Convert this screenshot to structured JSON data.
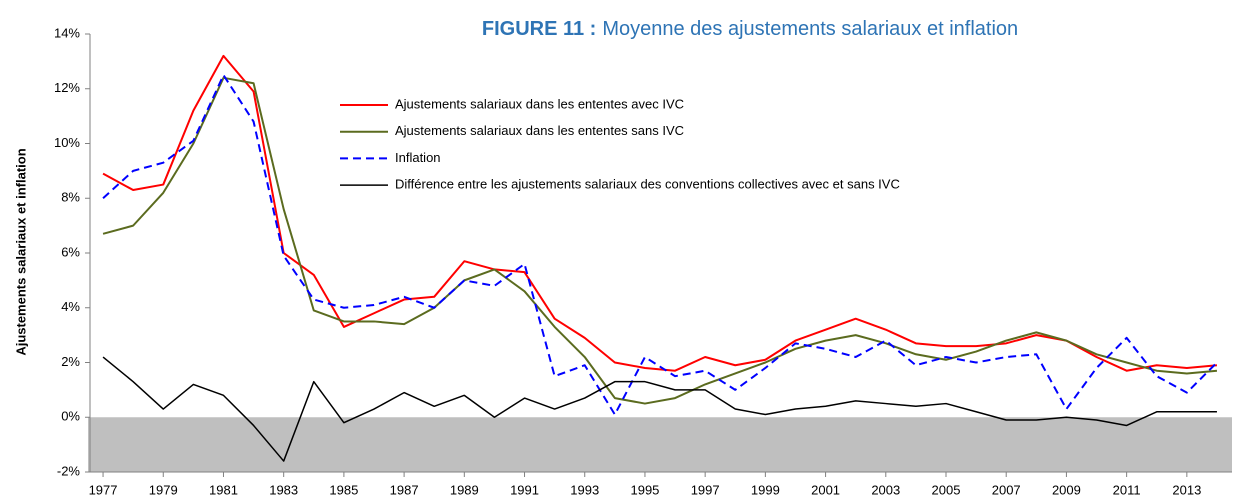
{
  "chart_data": {
    "type": "line",
    "figure_label": "FIGURE 11 :",
    "title": "Moyenne des ajustements salariaux et inflation",
    "y_label": "Ajustements salariaux et inflation",
    "x": [
      1977,
      1978,
      1979,
      1980,
      1981,
      1982,
      1983,
      1984,
      1985,
      1986,
      1987,
      1988,
      1989,
      1990,
      1991,
      1992,
      1993,
      1994,
      1995,
      1996,
      1997,
      1998,
      1999,
      2000,
      2001,
      2002,
      2003,
      2004,
      2005,
      2006,
      2007,
      2008,
      2009,
      2010,
      2011,
      2012,
      2013,
      2014
    ],
    "xlim": [
      1976.5,
      2014.5
    ],
    "xticks": [
      1977,
      1979,
      1981,
      1983,
      1985,
      1987,
      1989,
      1991,
      1993,
      1995,
      1997,
      1999,
      2001,
      2003,
      2005,
      2007,
      2009,
      2011,
      2013
    ],
    "ylim": [
      -2,
      14
    ],
    "yticks": [
      {
        "value": -2,
        "label": "-2%"
      },
      {
        "value": 0,
        "label": "0%"
      },
      {
        "value": 2,
        "label": "2%"
      },
      {
        "value": 4,
        "label": "4%"
      },
      {
        "value": 6,
        "label": "6%"
      },
      {
        "value": 8,
        "label": "8%"
      },
      {
        "value": 10,
        "label": "10%"
      },
      {
        "value": 12,
        "label": "12%"
      },
      {
        "value": 14,
        "label": "14%"
      }
    ],
    "legend": "top",
    "series": [
      {
        "name": "Ajustements salariaux dans les ententes avec IVC",
        "color": "#ff0000",
        "style": "solid",
        "values": [
          8.9,
          8.3,
          8.5,
          11.2,
          13.2,
          11.9,
          6.0,
          5.2,
          3.3,
          3.8,
          4.3,
          4.4,
          5.7,
          5.4,
          5.3,
          3.6,
          2.9,
          2.0,
          1.8,
          1.7,
          2.2,
          1.9,
          2.1,
          2.8,
          3.2,
          3.6,
          3.2,
          2.7,
          2.6,
          2.6,
          2.7,
          3.0,
          2.8,
          2.2,
          1.7,
          1.9,
          1.8,
          1.9
        ]
      },
      {
        "name": "Ajustements salariaux dans les ententes sans IVC",
        "color": "#5b6b1f",
        "style": "solid",
        "values": [
          6.7,
          7.0,
          8.2,
          10.0,
          12.4,
          12.2,
          7.6,
          3.9,
          3.5,
          3.5,
          3.4,
          4.0,
          5.0,
          5.4,
          4.6,
          3.3,
          2.2,
          0.7,
          0.5,
          0.7,
          1.2,
          1.6,
          2.0,
          2.5,
          2.8,
          3.0,
          2.7,
          2.3,
          2.1,
          2.4,
          2.8,
          3.1,
          2.8,
          2.3,
          2.0,
          1.7,
          1.6,
          1.7
        ]
      },
      {
        "name": "Inflation",
        "color": "#0000ff",
        "style": "dashed",
        "values": [
          8.0,
          9.0,
          9.3,
          10.1,
          12.5,
          10.8,
          5.9,
          4.3,
          4.0,
          4.1,
          4.4,
          4.0,
          5.0,
          4.8,
          5.6,
          1.5,
          1.9,
          0.1,
          2.2,
          1.5,
          1.7,
          1.0,
          1.8,
          2.7,
          2.5,
          2.2,
          2.8,
          1.9,
          2.2,
          2.0,
          2.2,
          2.3,
          0.3,
          1.8,
          2.9,
          1.5,
          0.9,
          2.0
        ]
      },
      {
        "name": "Différence entre les ajustements salariaux des conventions collectives avec et sans IVC",
        "color": "#000000",
        "style": "thin",
        "values": [
          2.2,
          1.3,
          0.3,
          1.2,
          0.8,
          -0.3,
          -1.6,
          1.3,
          -0.2,
          0.3,
          0.9,
          0.4,
          0.8,
          0.0,
          0.7,
          0.3,
          0.7,
          1.3,
          1.3,
          1.0,
          1.0,
          0.3,
          0.1,
          0.3,
          0.4,
          0.6,
          0.5,
          0.4,
          0.5,
          0.2,
          -0.1,
          -0.1,
          0.0,
          -0.1,
          -0.3,
          0.2,
          0.2,
          0.2
        ]
      }
    ]
  }
}
